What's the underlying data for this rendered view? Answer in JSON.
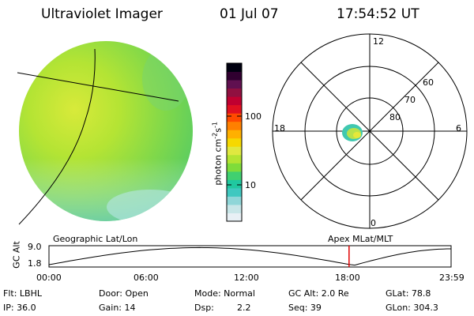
{
  "header": {
    "instrument": "Ultraviolet Imager",
    "date": "01 Jul 07",
    "time": "17:54:52 UT"
  },
  "colorbar": {
    "unit_label": "photon cm",
    "unit_exp1": "-2",
    "unit_s": "s",
    "unit_exp2": "-1",
    "ticks": [
      {
        "label": "100",
        "value": 100
      },
      {
        "label": "10",
        "value": 10
      }
    ],
    "colors": [
      "#e8f0f5",
      "#c8e6e8",
      "#8fd6d8",
      "#40c8c0",
      "#20c8a0",
      "#40d070",
      "#7fdc3a",
      "#b4e432",
      "#e0e840",
      "#f6d800",
      "#ffb000",
      "#ff8000",
      "#ff4a00",
      "#e01020",
      "#c00030",
      "#901040",
      "#601050",
      "#300030",
      "#000010"
    ]
  },
  "polar": {
    "mlt_labels": {
      "top": "12",
      "left": "18",
      "right": "6",
      "bottom": "0"
    },
    "lat_labels": [
      "60",
      "70",
      "80"
    ]
  },
  "timeline": {
    "ylabel": "GC Alt",
    "left_title": "Geographic Lat/Lon",
    "right_title": "Apex  MLat/MLT",
    "y_max": "9.0",
    "y_min": "1.8",
    "ticks": [
      "00:00",
      "06:00",
      "12:00",
      "18:00",
      "23:59"
    ],
    "current_time_hours": 17.91,
    "marker_color": "#e00000"
  },
  "info": {
    "row1": {
      "filter": "Flt: LBHL",
      "door": "Door: Open",
      "mode": "Mode: Normal",
      "gc_alt": "GC Alt: 2.0 Re",
      "glat": "GLat:  78.8"
    },
    "row2": {
      "ip": "IP: 36.0",
      "gain": "Gain: 14",
      "dsp_label": "Dsp:",
      "dsp_value": "2.2",
      "seq": "Seq: 39",
      "glon": "GLon: 304.3"
    }
  }
}
